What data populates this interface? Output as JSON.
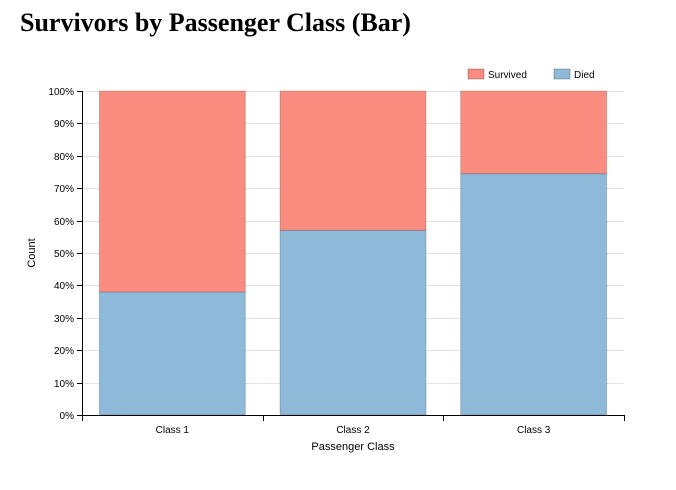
{
  "chart_data": {
    "type": "bar",
    "stacked": true,
    "normalized": true,
    "title": "Survivors by Passenger Class (Bar)",
    "xlabel": "Passenger Class",
    "ylabel": "Count",
    "categories": [
      "Class 1",
      "Class 2",
      "Class 3"
    ],
    "series": [
      {
        "name": "Died",
        "values": [
          0.38,
          0.57,
          0.745
        ],
        "color": "#8fb9d9"
      },
      {
        "name": "Survived",
        "values": [
          0.62,
          0.43,
          0.255
        ],
        "color": "#fa8d80"
      }
    ],
    "ylim": [
      0,
      1
    ],
    "y_ticks": [
      {
        "value": 0,
        "label": "0%"
      },
      {
        "value": 0.1,
        "label": "10%"
      },
      {
        "value": 0.2,
        "label": "20%"
      },
      {
        "value": 0.3,
        "label": "30%"
      },
      {
        "value": 0.4,
        "label": "40%"
      },
      {
        "value": 0.5,
        "label": "50%"
      },
      {
        "value": 0.6,
        "label": "60%"
      },
      {
        "value": 0.7,
        "label": "70%"
      },
      {
        "value": 0.8,
        "label": "80%"
      },
      {
        "value": 0.9,
        "label": "90%"
      },
      {
        "value": 1,
        "label": "100%"
      }
    ],
    "legend": {
      "placement": "top-right",
      "items": [
        {
          "label": "Survived",
          "color": "#fa8d80"
        },
        {
          "label": "Died",
          "color": "#8fb9d9"
        }
      ]
    },
    "grid": true
  }
}
